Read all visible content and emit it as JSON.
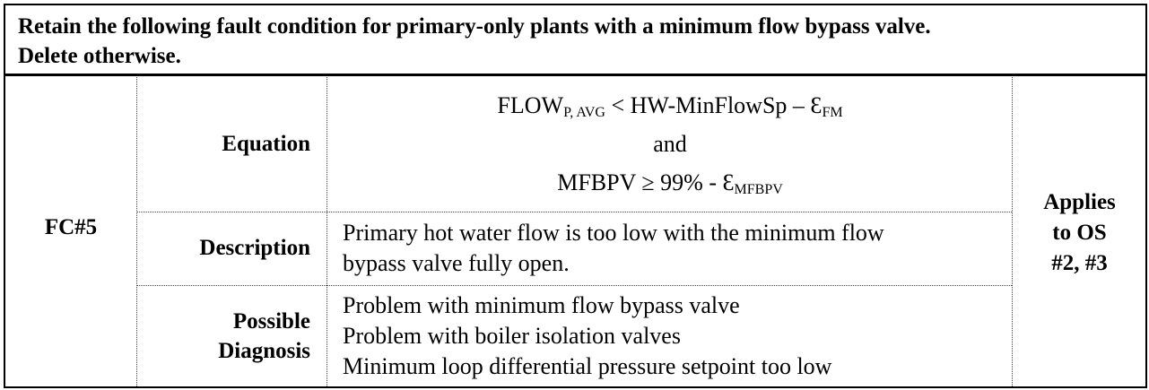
{
  "header": {
    "line1": "Retain the following fault condition for primary-only plants with a minimum flow bypass valve.",
    "line2": "Delete otherwise."
  },
  "fault": {
    "id": "FC#5",
    "applies": [
      "Applies",
      "to OS",
      "#2, #3"
    ]
  },
  "labels": {
    "equation": "Equation",
    "description": "Description",
    "diagnosis_line1": "Possible",
    "diagnosis_line2": "Diagnosis"
  },
  "equation": {
    "line1_main": "FLOW",
    "line1_sub": "P, AVG",
    "line1_rest": " < HW-MinFlowSp – Ɛ",
    "line1_sub2": "FM",
    "line2": "and",
    "line3_main": "MFBPV ≥ 99% - Ɛ",
    "line3_sub": "MFBPV"
  },
  "description": {
    "line1": "Primary hot water flow is too low with the minimum flow",
    "line2": "bypass valve fully open."
  },
  "diagnosis": [
    "Problem with minimum flow bypass valve",
    "Problem with boiler isolation valves",
    "Minimum loop differential pressure setpoint too low"
  ]
}
